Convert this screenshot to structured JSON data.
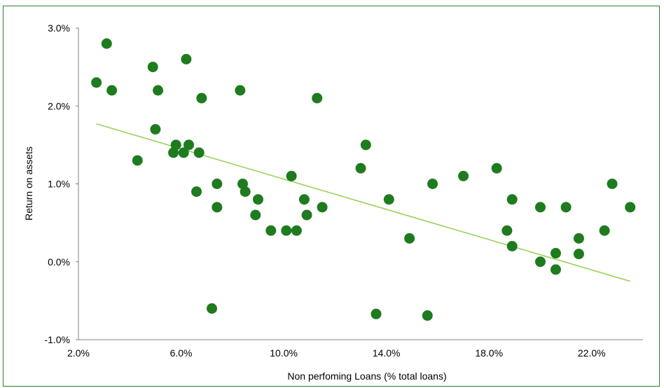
{
  "chart_data": {
    "type": "scatter",
    "title": "",
    "xlabel": "Non perfoming Loans (% total loans)",
    "ylabel": "Return on assets",
    "xlim": [
      2.0,
      24.0
    ],
    "ylim": [
      -1.0,
      3.0
    ],
    "x_ticks": [
      2.0,
      6.0,
      10.0,
      14.0,
      18.0,
      22.0
    ],
    "x_tick_labels": [
      "2.0%",
      "6.0%",
      "10.0%",
      "14.0%",
      "18.0%",
      "22.0%"
    ],
    "y_ticks": [
      3.0,
      2.0,
      1.0,
      0.0,
      -1.0
    ],
    "y_tick_labels": [
      "3.0%",
      "2.0%",
      "1.0%",
      "0.0%",
      "-1.0%"
    ],
    "grid": false,
    "marker_color": "#1e7b1e",
    "trendline_color": "#92d050",
    "trendline": {
      "x": [
        2.7,
        23.5
      ],
      "y": [
        1.77,
        -0.25
      ]
    },
    "points": [
      {
        "x": 2.7,
        "y": 2.3
      },
      {
        "x": 3.1,
        "y": 2.8
      },
      {
        "x": 3.3,
        "y": 2.2
      },
      {
        "x": 4.3,
        "y": 1.3
      },
      {
        "x": 4.9,
        "y": 2.5
      },
      {
        "x": 5.0,
        "y": 1.7
      },
      {
        "x": 5.1,
        "y": 2.2
      },
      {
        "x": 5.7,
        "y": 1.4
      },
      {
        "x": 5.8,
        "y": 1.5
      },
      {
        "x": 6.1,
        "y": 1.4
      },
      {
        "x": 6.2,
        "y": 2.6
      },
      {
        "x": 6.3,
        "y": 1.5
      },
      {
        "x": 6.6,
        "y": 0.9
      },
      {
        "x": 6.7,
        "y": 1.4
      },
      {
        "x": 6.8,
        "y": 2.1
      },
      {
        "x": 7.2,
        "y": -0.6
      },
      {
        "x": 7.4,
        "y": 1.0
      },
      {
        "x": 7.4,
        "y": 0.7
      },
      {
        "x": 8.3,
        "y": 2.2
      },
      {
        "x": 8.4,
        "y": 1.0
      },
      {
        "x": 8.5,
        "y": 0.9
      },
      {
        "x": 8.9,
        "y": 0.6
      },
      {
        "x": 9.0,
        "y": 0.8
      },
      {
        "x": 9.5,
        "y": 0.4
      },
      {
        "x": 10.1,
        "y": 0.4
      },
      {
        "x": 10.3,
        "y": 1.1
      },
      {
        "x": 10.5,
        "y": 0.4
      },
      {
        "x": 10.8,
        "y": 0.8
      },
      {
        "x": 10.9,
        "y": 0.6
      },
      {
        "x": 11.3,
        "y": 2.1
      },
      {
        "x": 11.5,
        "y": 0.7
      },
      {
        "x": 13.0,
        "y": 1.2
      },
      {
        "x": 13.2,
        "y": 1.5
      },
      {
        "x": 13.6,
        "y": -0.67
      },
      {
        "x": 14.1,
        "y": 0.8
      },
      {
        "x": 14.9,
        "y": 0.3
      },
      {
        "x": 15.6,
        "y": -0.69
      },
      {
        "x": 15.8,
        "y": 1.0
      },
      {
        "x": 17.0,
        "y": 1.1
      },
      {
        "x": 18.3,
        "y": 1.2
      },
      {
        "x": 18.7,
        "y": 0.4
      },
      {
        "x": 18.9,
        "y": 0.8
      },
      {
        "x": 18.9,
        "y": 0.2
      },
      {
        "x": 20.0,
        "y": 0.7
      },
      {
        "x": 20.0,
        "y": 0.0
      },
      {
        "x": 20.6,
        "y": -0.1
      },
      {
        "x": 20.6,
        "y": 0.11
      },
      {
        "x": 21.0,
        "y": 0.7
      },
      {
        "x": 21.5,
        "y": 0.1
      },
      {
        "x": 21.5,
        "y": 0.3
      },
      {
        "x": 22.5,
        "y": 0.4
      },
      {
        "x": 22.8,
        "y": 1.0
      },
      {
        "x": 23.5,
        "y": 0.7
      }
    ]
  }
}
